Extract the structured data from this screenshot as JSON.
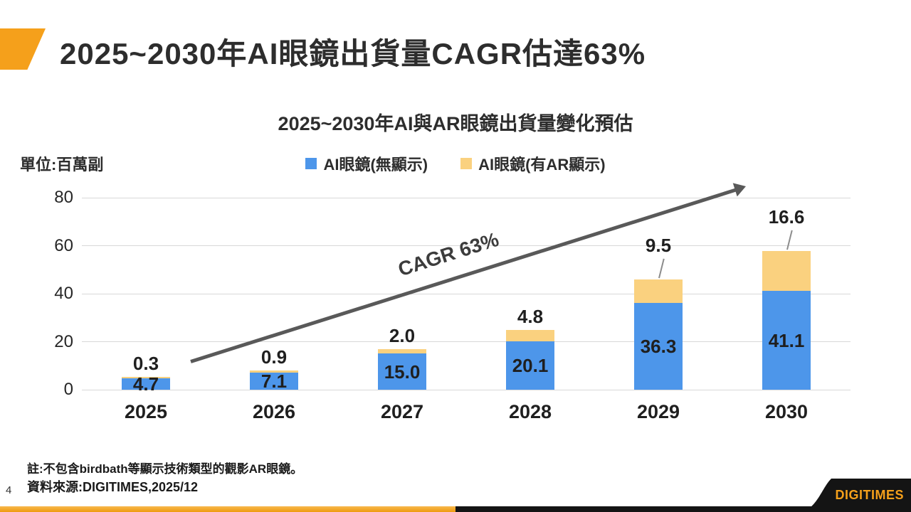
{
  "page": {
    "title": "2025~2030年AI眼鏡出貨量CAGR估達63%",
    "page_number": "4",
    "note": "註:不包含birdbath等顯示技術類型的觀影AR眼鏡。",
    "source": "資料來源:DIGITIMES,2025/12",
    "logo_text": "DIGITIMES"
  },
  "chart": {
    "title": "2025~2030年AI與AR眼鏡出貨量變化預估",
    "unit_label": "單位:百萬副",
    "annotation": "CAGR 63%",
    "legend": [
      {
        "label": "AI眼鏡(無顯示)",
        "color": "#4d96ea"
      },
      {
        "label": "AI眼鏡(有AR顯示)",
        "color": "#fad17f"
      }
    ]
  },
  "chart_data": {
    "type": "bar",
    "stacked": true,
    "title": "2025~2030年AI與AR眼鏡出貨量變化預估",
    "ylabel": "單位:百萬副",
    "categories": [
      "2025",
      "2026",
      "2027",
      "2028",
      "2029",
      "2030"
    ],
    "series": [
      {
        "name": "AI眼鏡(無顯示)",
        "color": "#4d96ea",
        "values": [
          4.7,
          7.1,
          15.0,
          20.1,
          36.3,
          41.1
        ],
        "labels": [
          "4.7",
          "7.1",
          "15.0",
          "20.1",
          "36.3",
          "41.1"
        ]
      },
      {
        "name": "AI眼鏡(有AR顯示)",
        "color": "#fad17f",
        "values": [
          0.3,
          0.9,
          2.0,
          4.8,
          9.5,
          16.6
        ],
        "labels": [
          "0.3",
          "0.9",
          "2.0",
          "4.8",
          "9.5",
          "16.6"
        ]
      }
    ],
    "totals": [
      5.0,
      8.0,
      17.0,
      24.9,
      45.8,
      57.7
    ],
    "ylim": [
      0,
      80
    ],
    "y_ticks": [
      0,
      20,
      40,
      60,
      80
    ],
    "grid": true,
    "legend_position": "top",
    "annotation": {
      "text": "CAGR 63%",
      "type": "trend-arrow",
      "value_pct": 63
    }
  },
  "colors": {
    "accent_orange": "#f5a01b",
    "bar_blue": "#4d96ea",
    "bar_yellow": "#fad17f",
    "arrow_gray": "#595959",
    "gridline": "#d8d8d8",
    "footer_black": "#141414"
  }
}
